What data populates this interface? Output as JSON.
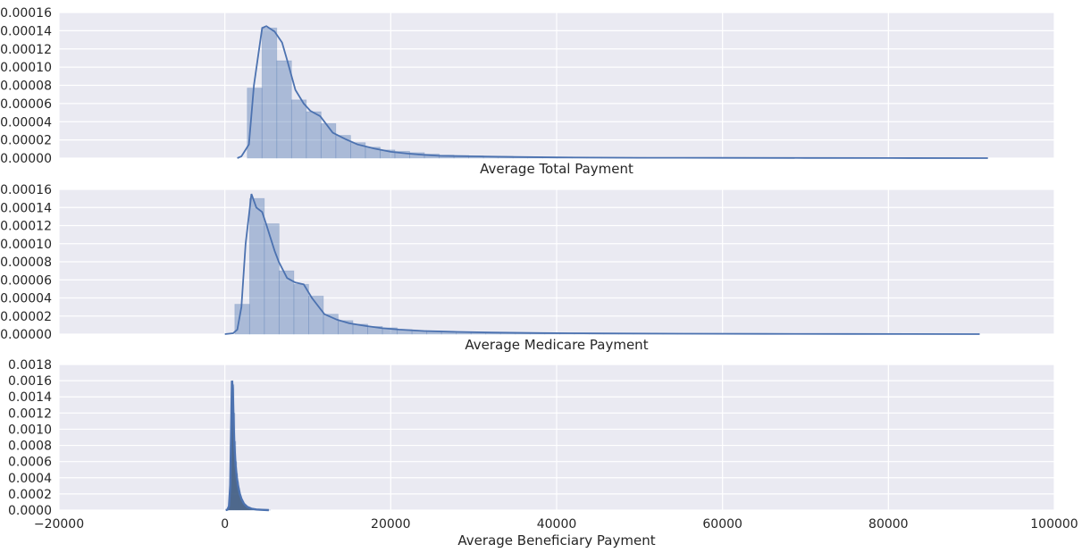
{
  "chart_data": [
    {
      "type": "histogram",
      "xlabel": "Average Total Payment",
      "ylabel": "",
      "xlim": [
        -20000,
        100000
      ],
      "ylim": [
        0,
        0.00016
      ],
      "yticks": [
        "0.00000",
        "0.00002",
        "0.00004",
        "0.00006",
        "0.00008",
        "0.00010",
        "0.00012",
        "0.00014",
        "0.00016"
      ],
      "show_xticks": false,
      "bins": {
        "start": 2700,
        "width": 1780,
        "values": [
          7.7e-05,
          0.000143,
          0.000107,
          6.4e-05,
          5.1e-05,
          3.8e-05,
          2.5e-05,
          1.7e-05,
          1.2e-05,
          9e-06,
          7.5e-06,
          6e-06,
          4.5e-06,
          3.5e-06,
          3e-06,
          2.5e-06,
          2e-06,
          2e-06,
          1.5e-06,
          1.5e-06,
          1.2e-06,
          1.2e-06,
          1e-06,
          1e-06,
          9e-07,
          8e-07,
          7e-07,
          6e-07,
          6e-07,
          5e-07,
          5e-07,
          4e-07,
          4e-07,
          3e-07,
          3e-07,
          3e-07,
          2e-07,
          2e-07,
          2e-07,
          2e-07,
          1e-07,
          1e-07,
          1e-07,
          1e-07,
          1e-07,
          1e-07,
          1e-07,
          1e-07,
          1e-07,
          1e-07
        ]
      },
      "kde": {
        "x": [
          1500,
          2000,
          2900,
          3500,
          4500,
          5000,
          6000,
          6900,
          7500,
          8500,
          9500,
          10300,
          11500,
          13000,
          14500,
          16000,
          18000,
          20000,
          22000,
          24000,
          26000,
          30000,
          35000,
          40000,
          50000,
          60000,
          70000,
          80000,
          92000
        ],
        "y": [
          0,
          2e-06,
          1.5e-05,
          8e-05,
          0.000143,
          0.000145,
          0.000139,
          0.000127,
          0.000108,
          7.5e-05,
          6e-05,
          5.2e-05,
          4.6e-05,
          2.8e-05,
          2.1e-05,
          1.5e-05,
          1.05e-05,
          7e-06,
          5e-06,
          3.5e-06,
          2.5e-06,
          2e-06,
          1.3e-06,
          8e-07,
          4e-07,
          3e-07,
          2e-07,
          1e-07,
          0
        ]
      }
    },
    {
      "type": "histogram",
      "xlabel": "Average Medicare Payment",
      "ylabel": "",
      "xlim": [
        -20000,
        100000
      ],
      "ylim": [
        0,
        0.00016
      ],
      "yticks": [
        "0.00000",
        "0.00002",
        "0.00004",
        "0.00006",
        "0.00008",
        "0.00010",
        "0.00012",
        "0.00014",
        "0.00016"
      ],
      "show_xticks": false,
      "bins": {
        "start": 1200,
        "width": 1780,
        "values": [
          3.3e-05,
          0.00015,
          0.000122,
          7e-05,
          5.5e-05,
          4.2e-05,
          2.2e-05,
          1.5e-05,
          1.1e-05,
          8.5e-06,
          7e-06,
          5e-06,
          4e-06,
          3.5e-06,
          3e-06,
          2.5e-06,
          2e-06,
          2e-06,
          1.6e-06,
          1.4e-06,
          1.2e-06,
          1e-06,
          1e-06,
          9e-07,
          8e-07,
          7e-07,
          6e-07,
          5e-07,
          5e-07,
          4e-07,
          4e-07,
          3e-07,
          3e-07,
          3e-07,
          2e-07,
          2e-07,
          2e-07,
          2e-07,
          1e-07,
          1e-07,
          1e-07,
          1e-07,
          1e-07,
          1e-07,
          1e-07,
          1e-07,
          1e-07,
          1e-07,
          1e-07,
          1e-07
        ]
      },
      "kde": {
        "x": [
          0,
          1000,
          1500,
          2000,
          2500,
          3200,
          3800,
          4500,
          5000,
          6000,
          6500,
          7500,
          8500,
          9500,
          10500,
          12000,
          13500,
          15000,
          17000,
          19000,
          21000,
          24000,
          28000,
          32000,
          38000,
          45000,
          55000,
          65000,
          75000,
          91000
        ],
        "y": [
          0,
          1e-06,
          5e-06,
          3e-05,
          0.0001,
          0.000155,
          0.00014,
          0.000135,
          0.000121,
          9.2e-05,
          8e-05,
          6.2e-05,
          5.7e-05,
          5.5e-05,
          4e-05,
          2.2e-05,
          1.6e-05,
          1.2e-05,
          9e-06,
          6.5e-06,
          5e-06,
          3.5e-06,
          2.5e-06,
          1.8e-06,
          1.2e-06,
          8e-07,
          5e-07,
          3e-07,
          2e-07,
          0
        ]
      }
    },
    {
      "type": "histogram",
      "xlabel": "Average Beneficiary Payment",
      "ylabel": "",
      "xlim": [
        -20000,
        100000
      ],
      "ylim": [
        0,
        0.0018
      ],
      "yticks": [
        "0.0000",
        "0.0002",
        "0.0004",
        "0.0006",
        "0.0008",
        "0.0010",
        "0.0012",
        "0.0014",
        "0.0016",
        "0.0018"
      ],
      "show_xticks": true,
      "xticks": [
        -20000,
        0,
        20000,
        40000,
        60000,
        80000,
        100000
      ],
      "xtick_labels": [
        "−20000",
        "0",
        "20000",
        "40000",
        "60000",
        "80000",
        "100000"
      ],
      "bins": {
        "start": 0,
        "width": 110,
        "values": [
          0.0,
          0.0,
          0.0,
          2e-05,
          8e-05,
          0.0003,
          0.0008,
          0.00145,
          0.0016,
          0.00155,
          0.0012,
          0.00085,
          0.0006,
          0.00045,
          0.00035,
          0.00027,
          0.00021,
          0.00017,
          0.00014,
          0.00012,
          0.0001,
          8e-05,
          7e-05,
          6e-05,
          5e-05,
          4e-05,
          3.5e-05,
          3e-05,
          2.5e-05,
          2e-05,
          1.8e-05,
          1.5e-05,
          1.3e-05,
          1.1e-05,
          1e-05,
          9e-06,
          8e-06,
          7e-06,
          6e-06,
          5e-06,
          5e-06,
          4e-06,
          4e-06,
          3e-06,
          3e-06,
          2e-06,
          2e-06,
          2e-06,
          1e-06,
          1e-06
        ]
      },
      "kde": {
        "x": [
          100,
          300,
          500,
          650,
          750,
          850,
          950,
          1050,
          1150,
          1300,
          1450,
          1600,
          1800,
          2000,
          2300,
          2700,
          3200,
          3800,
          4500,
          5300
        ],
        "y": [
          0,
          5e-06,
          5e-05,
          0.0003,
          0.0009,
          0.0016,
          0.0015,
          0.0011,
          0.0008,
          0.00055,
          0.0004,
          0.0003,
          0.0002,
          0.00014,
          8e-05,
          4e-05,
          1.8e-05,
          8e-06,
          3e-06,
          0
        ]
      }
    }
  ],
  "colors": {
    "axes_bg": "#eaeaf2",
    "grid": "#ffffff",
    "bar_fill": "#4c72b0",
    "line": "#4c72b0",
    "text": "#262626"
  }
}
